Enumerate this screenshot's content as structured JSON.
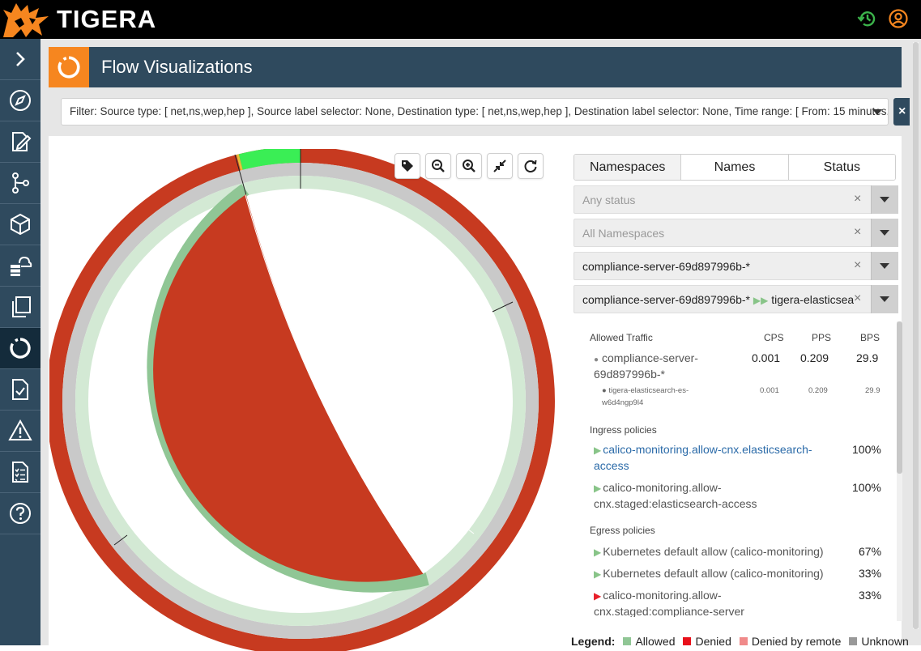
{
  "app": {
    "brand": "TIGERA"
  },
  "page": {
    "title": "Flow Visualizations"
  },
  "filter": {
    "text": "Filter: Source type: [ net,ns,wep,hep ], Source label selector: None, Destination type: [ net,ns,wep,hep ], Destination label selector: None, Time range: [ From: 15 minutes..."
  },
  "topbar": {
    "icons": [
      "history-icon",
      "user-account-icon"
    ]
  },
  "sidebar": {
    "items": [
      {
        "icon": "chevron-right-icon"
      },
      {
        "icon": "compass-icon"
      },
      {
        "icon": "edit-document-icon"
      },
      {
        "icon": "git-branch-icon"
      },
      {
        "icon": "cube-icon"
      },
      {
        "icon": "cloud-database-icon"
      },
      {
        "icon": "copy-icon"
      },
      {
        "icon": "flow-visualization-icon",
        "active": true
      },
      {
        "icon": "document-check-icon"
      },
      {
        "icon": "warning-icon"
      },
      {
        "icon": "checklist-icon"
      },
      {
        "icon": "help-icon"
      }
    ]
  },
  "toolbar": {
    "icons": [
      "tag-icon",
      "zoom-out-icon",
      "zoom-in-icon",
      "collapse-icon",
      "refresh-icon"
    ]
  },
  "tabs": [
    "Namespaces",
    "Names",
    "Status"
  ],
  "selects": {
    "status": {
      "placeholder": "Any status"
    },
    "namespace": {
      "placeholder": "All Namespaces"
    },
    "name": {
      "value": "compliance-server-69d897996b-*"
    },
    "flow": {
      "source": "compliance-server-69d897996b-*",
      "target": "tigera-elasticsea"
    }
  },
  "traffic": {
    "heading": "Allowed Traffic",
    "columns": [
      "CPS",
      "PPS",
      "BPS"
    ],
    "source": {
      "name_line1": "compliance-server-",
      "name_line2": "69d897996b-*",
      "cps": "0.001",
      "pps": "0.209",
      "bps": "29.9"
    },
    "dest": {
      "name_line1": "tigera-elasticsearch-es-",
      "name_line2": "w6d4ngp9l4",
      "cps": "0.001",
      "pps": "0.209",
      "bps": "29.9"
    }
  },
  "ingress": {
    "heading": "Ingress policies",
    "items": [
      {
        "line1": "calico-monitoring.allow-cnx.elasticsearch-",
        "line2": "access",
        "pct": "100%",
        "action": "allow",
        "link": true
      },
      {
        "line1": "calico-monitoring.allow-",
        "line2": "cnx.staged:elasticsearch-access",
        "pct": "100%",
        "action": "allow",
        "link": false
      }
    ]
  },
  "egress": {
    "heading": "Egress policies",
    "items": [
      {
        "line1": "Kubernetes default allow (calico-monitoring)",
        "pct": "67%",
        "action": "allow"
      },
      {
        "line1": "Kubernetes default allow (calico-monitoring)",
        "pct": "33%",
        "action": "allow"
      },
      {
        "line1": "calico-monitoring.allow-",
        "line2": "cnx.staged:compliance-server",
        "pct": "33%",
        "action": "deny"
      }
    ]
  },
  "legend": {
    "title": "Legend:",
    "items": [
      {
        "label": "Allowed",
        "color": "#90c695"
      },
      {
        "label": "Denied",
        "color": "#e8101a"
      },
      {
        "label": "Denied by remote",
        "color": "#f08a8a"
      },
      {
        "label": "Unknown",
        "color": "#999999"
      }
    ]
  },
  "colors": {
    "accent": "#f6861f",
    "header": "#2f4a5e",
    "sidebar": "#2f4a5e",
    "ring_outer": "#c73a20",
    "ring_gray": "#c9c9c9",
    "allowed_dark": "#90c695",
    "allowed_light": "#d3e9d4",
    "highlight": "#3aee55"
  }
}
